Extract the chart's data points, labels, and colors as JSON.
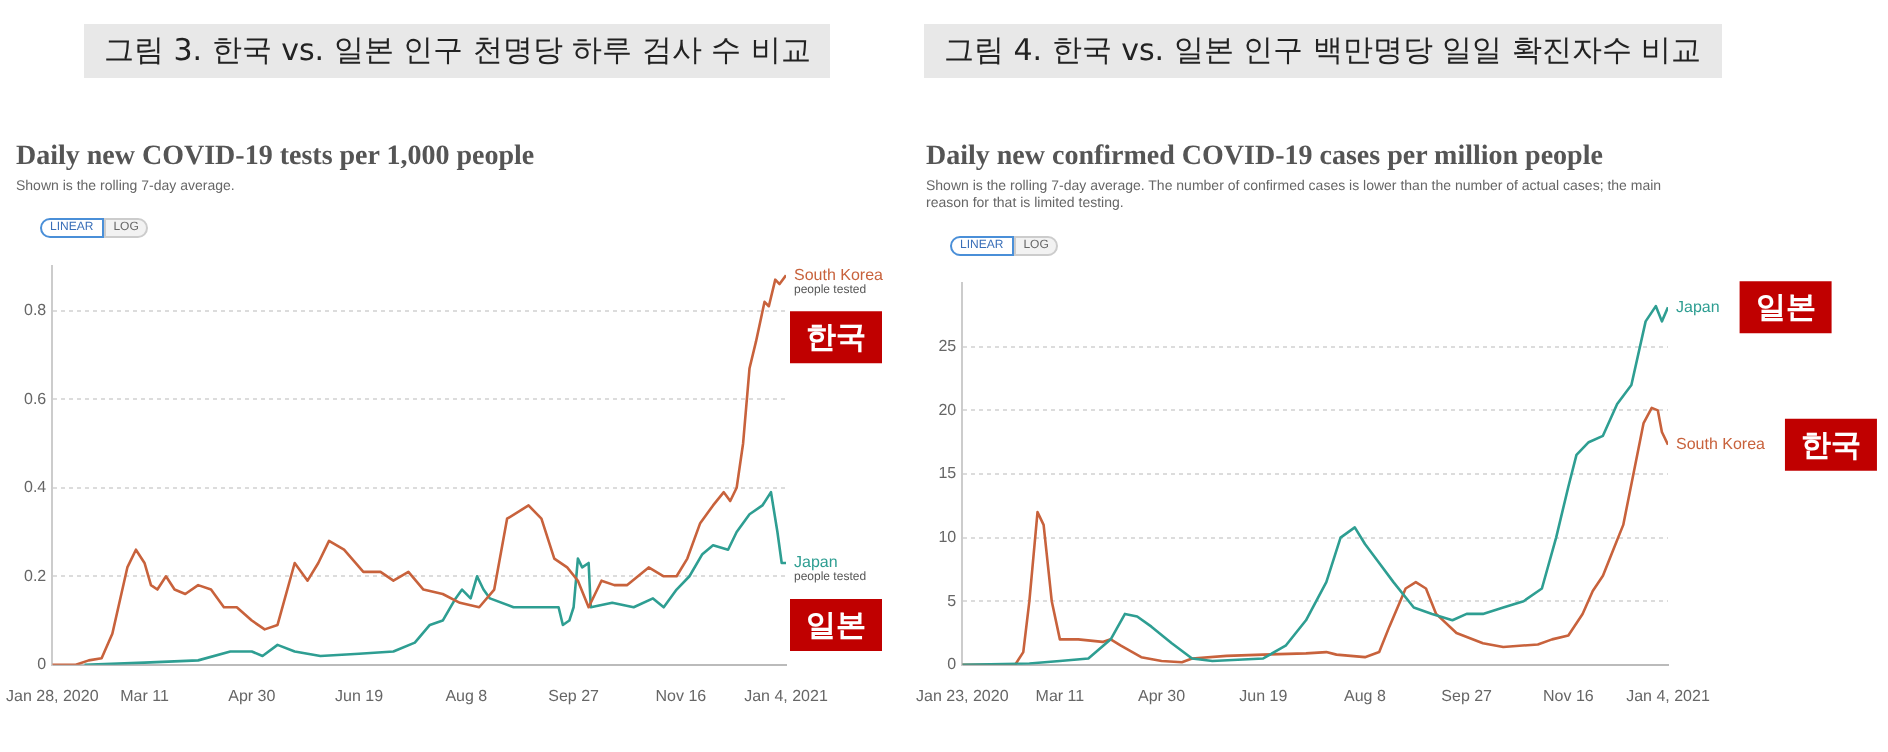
{
  "chart_data": [
    {
      "type": "line",
      "title": "그림 3. 한국 vs. 일본 인구 천명당 하루 검사 수 비교",
      "subtitle": "Daily new COVID-19 tests per 1,000 people",
      "annotations": [
        "Shown is the rolling 7-day average.",
        "LINEAR",
        "LOG",
        "people tested",
        "people tested",
        "한국",
        "일본"
      ],
      "xlim": [
        "2020-01-28",
        "2021-01-04"
      ],
      "xticks": [
        {
          "value": "2020-01-28",
          "label": "Jan 28, 2020"
        },
        {
          "value": "2020-03-11",
          "label": "Mar 11"
        },
        {
          "value": "2020-04-30",
          "label": "Apr 30"
        },
        {
          "value": "2020-06-19",
          "label": "Jun 19"
        },
        {
          "value": "2020-08-08",
          "label": "Aug 8"
        },
        {
          "value": "2020-09-27",
          "label": "Sep 27"
        },
        {
          "value": "2020-11-16",
          "label": "Nov 16"
        },
        {
          "value": "2021-01-04",
          "label": "Jan 4, 2021"
        }
      ],
      "ylim": [
        0,
        0.9
      ],
      "yticks": [
        0,
        0.2,
        0.4,
        0.6,
        0.8
      ],
      "grid": "y",
      "legend": false,
      "marker": "none",
      "line_style": "solid",
      "series": [
        {
          "name": "South Korea",
          "color": "#c8623c",
          "x": [
            "2020-01-28",
            "2020-02-08",
            "2020-02-14",
            "2020-02-20",
            "2020-02-25",
            "2020-03-03",
            "2020-03-07",
            "2020-03-11",
            "2020-03-14",
            "2020-03-17",
            "2020-03-21",
            "2020-03-25",
            "2020-03-30",
            "2020-04-05",
            "2020-04-11",
            "2020-04-17",
            "2020-04-23",
            "2020-04-30",
            "2020-05-06",
            "2020-05-12",
            "2020-05-20",
            "2020-05-26",
            "2020-05-31",
            "2020-06-05",
            "2020-06-12",
            "2020-06-21",
            "2020-06-29",
            "2020-07-05",
            "2020-07-12",
            "2020-07-19",
            "2020-07-28",
            "2020-08-05",
            "2020-08-14",
            "2020-08-21",
            "2020-08-27",
            "2020-09-06",
            "2020-09-12",
            "2020-09-18",
            "2020-09-24",
            "2020-09-29",
            "2020-10-04",
            "2020-10-10",
            "2020-10-16",
            "2020-10-22",
            "2020-11-01",
            "2020-11-08",
            "2020-11-14",
            "2020-11-19",
            "2020-11-25",
            "2020-12-01",
            "2020-12-06",
            "2020-12-09",
            "2020-12-12",
            "2020-12-15",
            "2020-12-18",
            "2020-12-21",
            "2020-12-25",
            "2020-12-27",
            "2020-12-30",
            "2021-01-01",
            "2021-01-04"
          ],
          "values": [
            0,
            0,
            0.01,
            0.015,
            0.07,
            0.22,
            0.26,
            0.23,
            0.18,
            0.17,
            0.2,
            0.17,
            0.16,
            0.18,
            0.17,
            0.13,
            0.13,
            0.1,
            0.08,
            0.09,
            0.23,
            0.19,
            0.23,
            0.28,
            0.26,
            0.21,
            0.21,
            0.19,
            0.21,
            0.17,
            0.16,
            0.14,
            0.13,
            0.17,
            0.33,
            0.36,
            0.33,
            0.24,
            0.22,
            0.19,
            0.13,
            0.19,
            0.18,
            0.18,
            0.22,
            0.2,
            0.2,
            0.24,
            0.32,
            0.36,
            0.39,
            0.37,
            0.4,
            0.5,
            0.67,
            0.73,
            0.82,
            0.81,
            0.87,
            0.86,
            0.88
          ]
        },
        {
          "name": "Japan",
          "color": "#2e9e92",
          "x": [
            "2020-02-12",
            "2020-03-11",
            "2020-04-05",
            "2020-04-20",
            "2020-04-30",
            "2020-05-05",
            "2020-05-12",
            "2020-05-20",
            "2020-06-01",
            "2020-06-19",
            "2020-07-05",
            "2020-07-15",
            "2020-07-22",
            "2020-07-28",
            "2020-08-03",
            "2020-08-06",
            "2020-08-10",
            "2020-08-13",
            "2020-08-16",
            "2020-08-19",
            "2020-08-30",
            "2020-09-10",
            "2020-09-20",
            "2020-09-22",
            "2020-09-25",
            "2020-09-27",
            "2020-09-29",
            "2020-10-01",
            "2020-10-04",
            "2020-10-05",
            "2020-10-15",
            "2020-10-25",
            "2020-11-03",
            "2020-11-08",
            "2020-11-14",
            "2020-11-20",
            "2020-11-26",
            "2020-12-01",
            "2020-12-08",
            "2020-12-12",
            "2020-12-18",
            "2020-12-24",
            "2020-12-28",
            "2020-12-31",
            "2021-01-02",
            "2021-01-04"
          ],
          "values": [
            0,
            0.005,
            0.01,
            0.03,
            0.03,
            0.02,
            0.045,
            0.03,
            0.02,
            0.025,
            0.03,
            0.05,
            0.09,
            0.1,
            0.15,
            0.17,
            0.15,
            0.2,
            0.17,
            0.15,
            0.13,
            0.13,
            0.13,
            0.09,
            0.1,
            0.13,
            0.24,
            0.22,
            0.23,
            0.13,
            0.14,
            0.13,
            0.15,
            0.13,
            0.17,
            0.2,
            0.25,
            0.27,
            0.26,
            0.3,
            0.34,
            0.36,
            0.39,
            0.3,
            0.23,
            0.23
          ]
        }
      ]
    },
    {
      "type": "line",
      "title": "그림 4. 한국 vs. 일본 인구 백만명당 일일 확진자수 비교",
      "subtitle": "Daily new confirmed COVID-19 cases per million people",
      "annotations": [
        "Shown is the rolling 7-day average. The number of confirmed cases is lower than the number of actual cases; the main reason for that is limited testing.",
        "LINEAR",
        "LOG",
        "일본",
        "한국"
      ],
      "xlim": [
        "2020-01-23",
        "2021-01-04"
      ],
      "xticks": [
        {
          "value": "2020-01-23",
          "label": "Jan 23, 2020"
        },
        {
          "value": "2020-03-11",
          "label": "Mar 11"
        },
        {
          "value": "2020-04-30",
          "label": "Apr 30"
        },
        {
          "value": "2020-06-19",
          "label": "Jun 19"
        },
        {
          "value": "2020-08-08",
          "label": "Aug 8"
        },
        {
          "value": "2020-09-27",
          "label": "Sep 27"
        },
        {
          "value": "2020-11-16",
          "label": "Nov 16"
        },
        {
          "value": "2021-01-04",
          "label": "Jan 4, 2021"
        }
      ],
      "ylim": [
        0,
        30
      ],
      "yticks": [
        0,
        5,
        10,
        15,
        20,
        25
      ],
      "grid": "y",
      "legend": false,
      "marker": "none",
      "line_style": "solid",
      "series": [
        {
          "name": "Japan",
          "color": "#2e9e92",
          "x": [
            "2020-01-23",
            "2020-02-25",
            "2020-03-11",
            "2020-03-25",
            "2020-04-05",
            "2020-04-12",
            "2020-04-18",
            "2020-04-25",
            "2020-05-05",
            "2020-05-15",
            "2020-05-25",
            "2020-06-19",
            "2020-06-30",
            "2020-07-10",
            "2020-07-20",
            "2020-07-27",
            "2020-08-03",
            "2020-08-08",
            "2020-08-15",
            "2020-08-22",
            "2020-09-01",
            "2020-09-10",
            "2020-09-20",
            "2020-09-27",
            "2020-10-05",
            "2020-10-15",
            "2020-10-25",
            "2020-11-03",
            "2020-11-10",
            "2020-11-16",
            "2020-11-20",
            "2020-11-26",
            "2020-12-03",
            "2020-12-10",
            "2020-12-17",
            "2020-12-24",
            "2020-12-29",
            "2021-01-01",
            "2021-01-04"
          ],
          "values": [
            0,
            0.1,
            0.3,
            0.5,
            2,
            4,
            3.8,
            3,
            1.7,
            0.5,
            0.3,
            0.5,
            1.5,
            3.5,
            6.5,
            10,
            10.8,
            9.5,
            8,
            6.5,
            4.5,
            4,
            3.5,
            4,
            4,
            4.5,
            5,
            6,
            10,
            14,
            16.5,
            17.5,
            18,
            20.5,
            22,
            27,
            28.2,
            27,
            28.1
          ]
        },
        {
          "name": "South Korea",
          "color": "#c8623c",
          "x": [
            "2020-01-23",
            "2020-02-18",
            "2020-02-22",
            "2020-02-25",
            "2020-02-29",
            "2020-03-03",
            "2020-03-07",
            "2020-03-11",
            "2020-03-20",
            "2020-04-01",
            "2020-04-05",
            "2020-04-10",
            "2020-04-20",
            "2020-04-30",
            "2020-05-10",
            "2020-05-15",
            "2020-06-01",
            "2020-06-19",
            "2020-07-10",
            "2020-07-20",
            "2020-07-25",
            "2020-08-08",
            "2020-08-15",
            "2020-08-20",
            "2020-08-28",
            "2020-09-02",
            "2020-09-07",
            "2020-09-12",
            "2020-09-22",
            "2020-10-05",
            "2020-10-15",
            "2020-11-01",
            "2020-11-08",
            "2020-11-16",
            "2020-11-23",
            "2020-11-28",
            "2020-12-03",
            "2020-12-08",
            "2020-12-13",
            "2020-12-18",
            "2020-12-23",
            "2020-12-27",
            "2020-12-30",
            "2021-01-01",
            "2021-01-04"
          ],
          "values": [
            0,
            0,
            1,
            5,
            12,
            11,
            5,
            2,
            2,
            1.8,
            2,
            1.5,
            0.6,
            0.3,
            0.2,
            0.5,
            0.7,
            0.8,
            0.9,
            1,
            0.8,
            0.6,
            1,
            3,
            6,
            6.5,
            6,
            4,
            2.5,
            1.7,
            1.4,
            1.6,
            2,
            2.3,
            4,
            5.8,
            7,
            9,
            11,
            15,
            19,
            20.2,
            20,
            18.3,
            17.3
          ]
        }
      ]
    }
  ]
}
